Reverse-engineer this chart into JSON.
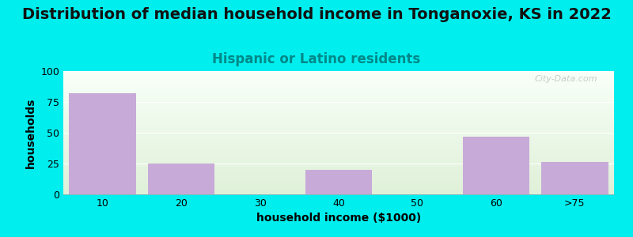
{
  "title": "Distribution of median household income in Tonganoxie, KS in 2022",
  "subtitle": "Hispanic or Latino residents",
  "xlabel": "household income ($1000)",
  "ylabel": "households",
  "categories": [
    "10",
    "20",
    "30",
    "40",
    "50",
    "60",
    ">75"
  ],
  "values": [
    82,
    25,
    0,
    20,
    0,
    47,
    26
  ],
  "bar_color": "#c8aad8",
  "background_color": "#00EEEE",
  "plot_bg_top": "#dff0d8",
  "plot_bg_bottom": "#f8fff8",
  "ylim": [
    0,
    100
  ],
  "yticks": [
    0,
    25,
    50,
    75,
    100
  ],
  "title_fontsize": 14,
  "subtitle_fontsize": 12,
  "subtitle_color": "#008888",
  "axis_label_fontsize": 10,
  "watermark": "City-Data.com",
  "fig_width": 8.0,
  "fig_height": 3.0,
  "dpi": 100
}
